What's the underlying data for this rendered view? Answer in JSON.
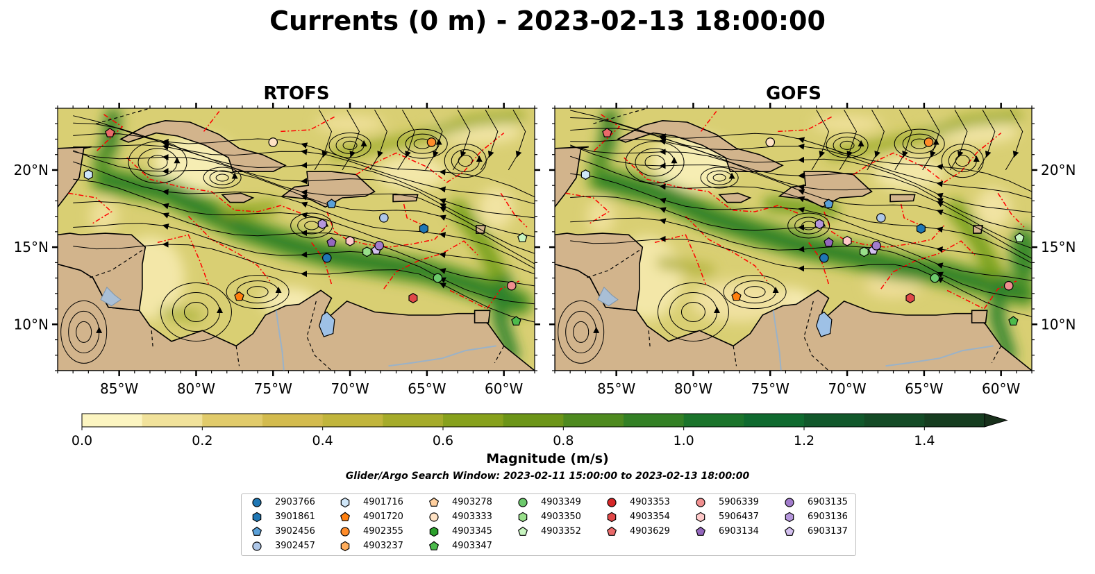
{
  "title": "Currents (0 m) - 2023-02-13 18:00:00",
  "panels": [
    {
      "id": "rtofs",
      "title": "RTOFS"
    },
    {
      "id": "gofs",
      "title": "GOFS"
    }
  ],
  "map": {
    "lon_range": [
      -89,
      -58
    ],
    "lat_range": [
      7,
      24
    ],
    "lon_ticks": [
      "85°W",
      "80°W",
      "75°W",
      "70°W",
      "65°W",
      "60°W"
    ],
    "lat_ticks": [
      "20°N",
      "15°N",
      "10°N"
    ],
    "land_color": "#d2b48c",
    "eez_line_color": "#ff0000",
    "stream_color": "#000000"
  },
  "colorbar": {
    "label": "Magnitude (m/s)",
    "ticks": [
      "0.0",
      "0.2",
      "0.4",
      "0.6",
      "0.8",
      "1.0",
      "1.2",
      "1.4"
    ],
    "range": [
      0,
      1.5
    ],
    "extend": "max",
    "colors": [
      "#fcf5c1",
      "#f1e29b",
      "#e1cb6b",
      "#d3bb4e",
      "#c1b53c",
      "#a5ab2a",
      "#87a11c",
      "#6c9518",
      "#4e8a1f",
      "#338025",
      "#1b742b",
      "#0f6a2f",
      "#11582b",
      "#144b26",
      "#163d20",
      "#18301b"
    ]
  },
  "search_window": "Glider/Argo Search Window: 2023-02-11 15:00:00 to 2023-02-13 18:00:00",
  "legend": [
    {
      "id": "2903766",
      "shape": "circle",
      "color": "#1f77b4"
    },
    {
      "id": "3901861",
      "shape": "hexagon",
      "color": "#1f77b4"
    },
    {
      "id": "3902456",
      "shape": "pentagon",
      "color": "#5aa0d8"
    },
    {
      "id": "3902457",
      "shape": "circle",
      "color": "#aec7e8"
    },
    {
      "id": "4901716",
      "shape": "hexagon",
      "color": "#cfe6f8"
    },
    {
      "id": "4901720",
      "shape": "pentagon",
      "color": "#ff7f0e"
    },
    {
      "id": "4902355",
      "shape": "circle",
      "color": "#ff8c2a"
    },
    {
      "id": "4903237",
      "shape": "hexagon",
      "color": "#ffad5c"
    },
    {
      "id": "4903278",
      "shape": "pentagon",
      "color": "#ffcf9e"
    },
    {
      "id": "4903333",
      "shape": "circle",
      "color": "#ffe2c4"
    },
    {
      "id": "4903345",
      "shape": "hexagon",
      "color": "#2ca02c"
    },
    {
      "id": "4903347",
      "shape": "pentagon",
      "color": "#4cbb4c"
    },
    {
      "id": "4903349",
      "shape": "circle",
      "color": "#6cc96c"
    },
    {
      "id": "4903350",
      "shape": "hexagon",
      "color": "#98df8a"
    },
    {
      "id": "4903352",
      "shape": "pentagon",
      "color": "#c8f5c0"
    },
    {
      "id": "4903353",
      "shape": "circle",
      "color": "#d62728"
    },
    {
      "id": "4903354",
      "shape": "hexagon",
      "color": "#e04848"
    },
    {
      "id": "4903629",
      "shape": "pentagon",
      "color": "#ea6a6a"
    },
    {
      "id": "5906339",
      "shape": "circle",
      "color": "#f08f8f"
    },
    {
      "id": "5906437",
      "shape": "hexagon",
      "color": "#ffc9c9"
    },
    {
      "id": "6903134",
      "shape": "pentagon",
      "color": "#9467bd"
    },
    {
      "id": "6903135",
      "shape": "circle",
      "color": "#a27ccc"
    },
    {
      "id": "6903136",
      "shape": "hexagon",
      "color": "#b596dc"
    },
    {
      "id": "6903137",
      "shape": "pentagon",
      "color": "#d3c0ef"
    }
  ],
  "floats": [
    {
      "id": "4903629",
      "lon": -85.6,
      "lat": 22.4
    },
    {
      "id": "4901716",
      "lon": -87.0,
      "lat": 19.7
    },
    {
      "id": "4903333",
      "lon": -75.0,
      "lat": 21.8
    },
    {
      "id": "4902355",
      "lon": -64.7,
      "lat": 21.8
    },
    {
      "id": "3902456",
      "lon": -71.2,
      "lat": 17.8
    },
    {
      "id": "3902457",
      "lon": -67.8,
      "lat": 16.9
    },
    {
      "id": "3901861",
      "lon": -65.2,
      "lat": 16.2
    },
    {
      "id": "6903136",
      "lon": -71.8,
      "lat": 16.5
    },
    {
      "id": "6903134",
      "lon": -71.2,
      "lat": 15.3
    },
    {
      "id": "5906437",
      "lon": -70.0,
      "lat": 15.4
    },
    {
      "id": "4903350",
      "lon": -68.9,
      "lat": 14.7
    },
    {
      "id": "6903137",
      "lon": -68.3,
      "lat": 14.8
    },
    {
      "id": "6903135",
      "lon": -68.1,
      "lat": 15.1
    },
    {
      "id": "2903766",
      "lon": -71.5,
      "lat": 14.3
    },
    {
      "id": "4903352",
      "lon": -58.8,
      "lat": 15.6
    },
    {
      "id": "4903349",
      "lon": -64.3,
      "lat": 13.0
    },
    {
      "id": "5906339",
      "lon": -59.5,
      "lat": 12.5
    },
    {
      "id": "4903354",
      "lon": -65.9,
      "lat": 11.7
    },
    {
      "id": "4901720",
      "lon": -77.2,
      "lat": 11.8
    },
    {
      "id": "4903347",
      "lon": -59.2,
      "lat": 10.2
    }
  ]
}
